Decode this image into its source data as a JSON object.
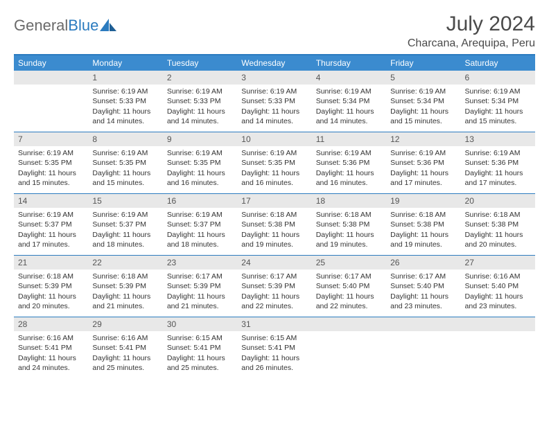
{
  "logo": {
    "text_gray": "General",
    "text_blue": "Blue"
  },
  "title": "July 2024",
  "location": "Charcana, Arequipa, Peru",
  "colors": {
    "header_bg": "#3b8bcf",
    "border": "#2b7bbf",
    "daynum_bg": "#e8e8e8",
    "text": "#333333"
  },
  "weekdays": [
    "Sunday",
    "Monday",
    "Tuesday",
    "Wednesday",
    "Thursday",
    "Friday",
    "Saturday"
  ],
  "weeks": [
    [
      {
        "num": "",
        "sunrise": "",
        "sunset": "",
        "daylight": ""
      },
      {
        "num": "1",
        "sunrise": "Sunrise: 6:19 AM",
        "sunset": "Sunset: 5:33 PM",
        "daylight": "Daylight: 11 hours and 14 minutes."
      },
      {
        "num": "2",
        "sunrise": "Sunrise: 6:19 AM",
        "sunset": "Sunset: 5:33 PM",
        "daylight": "Daylight: 11 hours and 14 minutes."
      },
      {
        "num": "3",
        "sunrise": "Sunrise: 6:19 AM",
        "sunset": "Sunset: 5:33 PM",
        "daylight": "Daylight: 11 hours and 14 minutes."
      },
      {
        "num": "4",
        "sunrise": "Sunrise: 6:19 AM",
        "sunset": "Sunset: 5:34 PM",
        "daylight": "Daylight: 11 hours and 14 minutes."
      },
      {
        "num": "5",
        "sunrise": "Sunrise: 6:19 AM",
        "sunset": "Sunset: 5:34 PM",
        "daylight": "Daylight: 11 hours and 15 minutes."
      },
      {
        "num": "6",
        "sunrise": "Sunrise: 6:19 AM",
        "sunset": "Sunset: 5:34 PM",
        "daylight": "Daylight: 11 hours and 15 minutes."
      }
    ],
    [
      {
        "num": "7",
        "sunrise": "Sunrise: 6:19 AM",
        "sunset": "Sunset: 5:35 PM",
        "daylight": "Daylight: 11 hours and 15 minutes."
      },
      {
        "num": "8",
        "sunrise": "Sunrise: 6:19 AM",
        "sunset": "Sunset: 5:35 PM",
        "daylight": "Daylight: 11 hours and 15 minutes."
      },
      {
        "num": "9",
        "sunrise": "Sunrise: 6:19 AM",
        "sunset": "Sunset: 5:35 PM",
        "daylight": "Daylight: 11 hours and 16 minutes."
      },
      {
        "num": "10",
        "sunrise": "Sunrise: 6:19 AM",
        "sunset": "Sunset: 5:35 PM",
        "daylight": "Daylight: 11 hours and 16 minutes."
      },
      {
        "num": "11",
        "sunrise": "Sunrise: 6:19 AM",
        "sunset": "Sunset: 5:36 PM",
        "daylight": "Daylight: 11 hours and 16 minutes."
      },
      {
        "num": "12",
        "sunrise": "Sunrise: 6:19 AM",
        "sunset": "Sunset: 5:36 PM",
        "daylight": "Daylight: 11 hours and 17 minutes."
      },
      {
        "num": "13",
        "sunrise": "Sunrise: 6:19 AM",
        "sunset": "Sunset: 5:36 PM",
        "daylight": "Daylight: 11 hours and 17 minutes."
      }
    ],
    [
      {
        "num": "14",
        "sunrise": "Sunrise: 6:19 AM",
        "sunset": "Sunset: 5:37 PM",
        "daylight": "Daylight: 11 hours and 17 minutes."
      },
      {
        "num": "15",
        "sunrise": "Sunrise: 6:19 AM",
        "sunset": "Sunset: 5:37 PM",
        "daylight": "Daylight: 11 hours and 18 minutes."
      },
      {
        "num": "16",
        "sunrise": "Sunrise: 6:19 AM",
        "sunset": "Sunset: 5:37 PM",
        "daylight": "Daylight: 11 hours and 18 minutes."
      },
      {
        "num": "17",
        "sunrise": "Sunrise: 6:18 AM",
        "sunset": "Sunset: 5:38 PM",
        "daylight": "Daylight: 11 hours and 19 minutes."
      },
      {
        "num": "18",
        "sunrise": "Sunrise: 6:18 AM",
        "sunset": "Sunset: 5:38 PM",
        "daylight": "Daylight: 11 hours and 19 minutes."
      },
      {
        "num": "19",
        "sunrise": "Sunrise: 6:18 AM",
        "sunset": "Sunset: 5:38 PM",
        "daylight": "Daylight: 11 hours and 19 minutes."
      },
      {
        "num": "20",
        "sunrise": "Sunrise: 6:18 AM",
        "sunset": "Sunset: 5:38 PM",
        "daylight": "Daylight: 11 hours and 20 minutes."
      }
    ],
    [
      {
        "num": "21",
        "sunrise": "Sunrise: 6:18 AM",
        "sunset": "Sunset: 5:39 PM",
        "daylight": "Daylight: 11 hours and 20 minutes."
      },
      {
        "num": "22",
        "sunrise": "Sunrise: 6:18 AM",
        "sunset": "Sunset: 5:39 PM",
        "daylight": "Daylight: 11 hours and 21 minutes."
      },
      {
        "num": "23",
        "sunrise": "Sunrise: 6:17 AM",
        "sunset": "Sunset: 5:39 PM",
        "daylight": "Daylight: 11 hours and 21 minutes."
      },
      {
        "num": "24",
        "sunrise": "Sunrise: 6:17 AM",
        "sunset": "Sunset: 5:39 PM",
        "daylight": "Daylight: 11 hours and 22 minutes."
      },
      {
        "num": "25",
        "sunrise": "Sunrise: 6:17 AM",
        "sunset": "Sunset: 5:40 PM",
        "daylight": "Daylight: 11 hours and 22 minutes."
      },
      {
        "num": "26",
        "sunrise": "Sunrise: 6:17 AM",
        "sunset": "Sunset: 5:40 PM",
        "daylight": "Daylight: 11 hours and 23 minutes."
      },
      {
        "num": "27",
        "sunrise": "Sunrise: 6:16 AM",
        "sunset": "Sunset: 5:40 PM",
        "daylight": "Daylight: 11 hours and 23 minutes."
      }
    ],
    [
      {
        "num": "28",
        "sunrise": "Sunrise: 6:16 AM",
        "sunset": "Sunset: 5:41 PM",
        "daylight": "Daylight: 11 hours and 24 minutes."
      },
      {
        "num": "29",
        "sunrise": "Sunrise: 6:16 AM",
        "sunset": "Sunset: 5:41 PM",
        "daylight": "Daylight: 11 hours and 25 minutes."
      },
      {
        "num": "30",
        "sunrise": "Sunrise: 6:15 AM",
        "sunset": "Sunset: 5:41 PM",
        "daylight": "Daylight: 11 hours and 25 minutes."
      },
      {
        "num": "31",
        "sunrise": "Sunrise: 6:15 AM",
        "sunset": "Sunset: 5:41 PM",
        "daylight": "Daylight: 11 hours and 26 minutes."
      },
      {
        "num": "",
        "sunrise": "",
        "sunset": "",
        "daylight": ""
      },
      {
        "num": "",
        "sunrise": "",
        "sunset": "",
        "daylight": ""
      },
      {
        "num": "",
        "sunrise": "",
        "sunset": "",
        "daylight": ""
      }
    ]
  ]
}
